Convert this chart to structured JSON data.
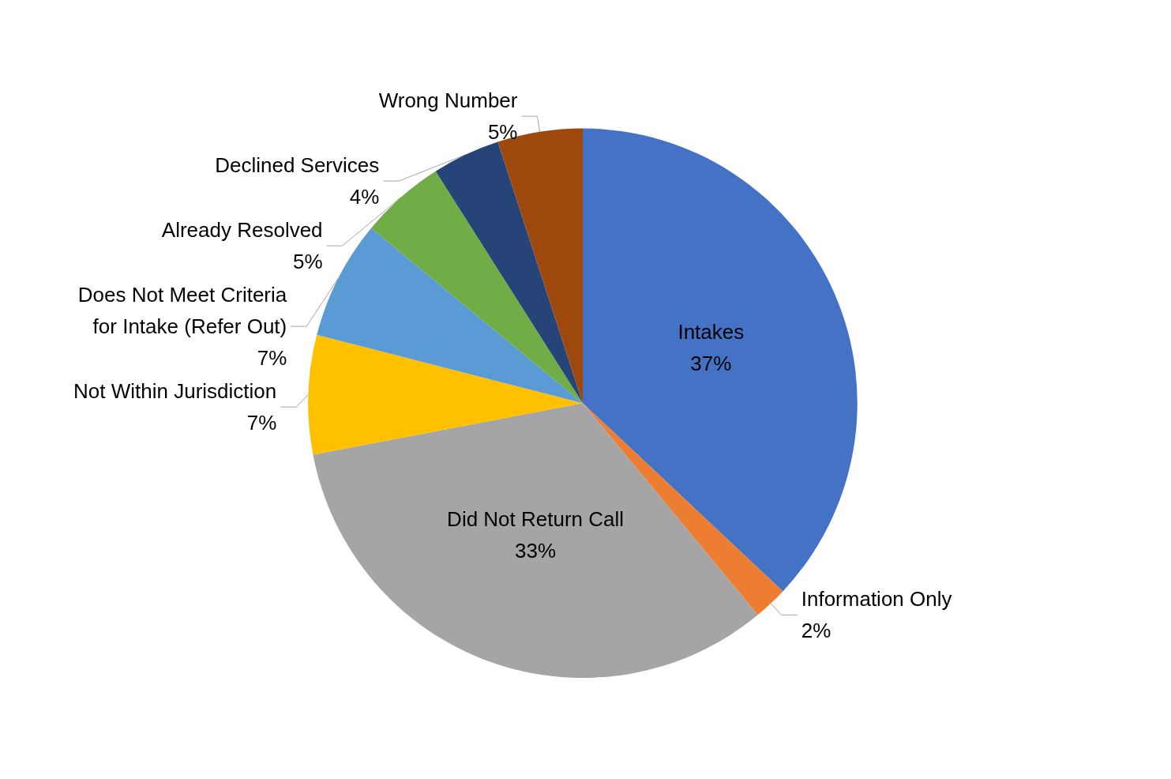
{
  "chart_data": {
    "type": "pie",
    "categories": [
      "Intakes",
      "Information Only",
      "Did Not Return Call",
      "Not Within Jurisdiction",
      "Does Not Meet Criteria for Intake (Refer Out)",
      "Already Resolved",
      "Declined Services",
      "Wrong Number"
    ],
    "values": [
      37,
      2,
      33,
      7,
      7,
      5,
      4,
      5
    ],
    "colors": [
      "#4472c4",
      "#ed7d31",
      "#a5a5a5",
      "#ffc000",
      "#5b9bd5",
      "#70ad47",
      "#264478",
      "#9e480e"
    ],
    "value_labels": [
      "37%",
      "2%",
      "33%",
      "7%",
      "7%",
      "5%",
      "4%",
      "5%"
    ],
    "legend": false
  }
}
